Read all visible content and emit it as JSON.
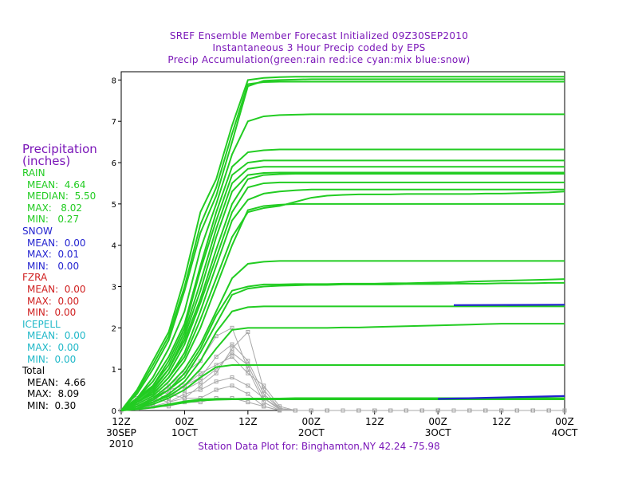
{
  "titles": [
    "SREF Ensemble Member Forecast Initialized 09Z30SEP2010",
    "Instantaneous 3 Hour Precip coded by EPS",
    "Precip Accumulation(green:rain red:ice cyan:mix blue:snow)"
  ],
  "legend": {
    "header1": "Precipitation",
    "header2": "(inches)",
    "rain": {
      "label": "RAIN",
      "mean": "MEAN:  4.64",
      "median": "MEDIAN:  5.50",
      "max": "MAX:   8.02",
      "min": "MIN:   0.27"
    },
    "snow": {
      "label": "SNOW",
      "mean": "MEAN:  0.00",
      "max": "MAX:  0.01",
      "min": "MIN:   0.00"
    },
    "fzra": {
      "label": "FZRA",
      "mean": "MEAN:  0.00",
      "max": "MAX:  0.00",
      "min": "MIN:  0.00"
    },
    "icepell": {
      "label": "ICEPELL",
      "mean": "MEAN:  0.00",
      "max": "MAX:  0.00",
      "min": "MIN:  0.00"
    },
    "total": {
      "label": "Total",
      "mean": "MEAN:  4.66",
      "max": "MAX:  8.09",
      "min": "MIN:  0.30"
    }
  },
  "footer": "Station Data Plot for: Binghamton,NY 42.24 -75.98",
  "colors": {
    "title": "#7a16b8",
    "rain": "#22cc22",
    "snow": "#2323d0",
    "fzra": "#d02020",
    "icepell": "#20b8c8",
    "instant": "#a8a8a8"
  },
  "chart_data": {
    "type": "line",
    "xlabel": "",
    "ylabel": "",
    "xlim": [
      0,
      48
    ],
    "ylim": [
      0,
      8.2
    ],
    "yticks": [
      "0",
      "1",
      "2",
      "3",
      "4",
      "5",
      "6",
      "7",
      "8"
    ],
    "xticks": [
      {
        "x": 0,
        "line1": "12Z",
        "line2": "30SEP",
        "line3": "2010"
      },
      {
        "x": 4,
        "line1": "00Z",
        "line2": "1OCT",
        "line3": ""
      },
      {
        "x": 8,
        "line1": "12Z",
        "line2": "",
        "line3": ""
      },
      {
        "x": 12,
        "line1": "00Z",
        "line2": "2OCT",
        "line3": ""
      },
      {
        "x": 16,
        "line1": "12Z",
        "line2": "",
        "line3": ""
      },
      {
        "x": 20,
        "line1": "00Z",
        "line2": "3OCT",
        "line3": ""
      },
      {
        "x": 24,
        "line1": "12Z",
        "line2": "",
        "line3": ""
      },
      {
        "x": 28,
        "line1": "00Z",
        "line2": "4OCT",
        "line3": ""
      }
    ],
    "x": [
      0,
      1,
      2,
      3,
      4,
      5,
      6,
      7,
      8,
      9,
      10,
      11,
      12,
      13,
      14,
      15,
      16,
      17,
      18,
      19,
      20,
      21,
      22,
      23,
      24,
      25,
      26,
      27,
      28
    ],
    "series_accumulation": [
      {
        "values": [
          0,
          0.5,
          1.2,
          1.9,
          3.2,
          4.8,
          5.6,
          6.9,
          8.0,
          8.05,
          8.07,
          8.08,
          8.08,
          8.08,
          8.08,
          8.08,
          8.08,
          8.08,
          8.08,
          8.08,
          8.08,
          8.08,
          8.08,
          8.08,
          8.08,
          8.08,
          8.08,
          8.08,
          8.08
        ]
      },
      {
        "values": [
          0,
          0.4,
          1.0,
          1.7,
          2.9,
          4.3,
          5.2,
          6.5,
          7.85,
          7.98,
          8.0,
          8.01,
          8.02,
          8.02,
          8.02,
          8.02,
          8.02,
          8.02,
          8.02,
          8.02,
          8.02,
          8.02,
          8.02,
          8.02,
          8.02,
          8.02,
          8.02,
          8.02,
          8.02
        ]
      },
      {
        "values": [
          0,
          0.45,
          1.1,
          1.8,
          3.0,
          4.5,
          5.4,
          6.7,
          7.9,
          7.95,
          7.96,
          7.96,
          7.96,
          7.96,
          7.96,
          7.96,
          7.96,
          7.96,
          7.96,
          7.96,
          7.96,
          7.96,
          7.96,
          7.96,
          7.96,
          7.96,
          7.96,
          7.96,
          7.96
        ]
      },
      {
        "values": [
          0,
          0.3,
          0.8,
          1.5,
          2.4,
          3.9,
          5.0,
          6.2,
          7.0,
          7.12,
          7.15,
          7.16,
          7.17,
          7.17,
          7.17,
          7.17,
          7.17,
          7.17,
          7.17,
          7.17,
          7.17,
          7.17,
          7.17,
          7.17,
          7.17,
          7.17,
          7.17,
          7.17,
          7.17
        ]
      },
      {
        "values": [
          0,
          0.3,
          0.7,
          1.3,
          2.1,
          3.5,
          4.8,
          5.9,
          6.25,
          6.3,
          6.32,
          6.32,
          6.32,
          6.32,
          6.32,
          6.32,
          6.32,
          6.32,
          6.32,
          6.32,
          6.32,
          6.32,
          6.32,
          6.32,
          6.32,
          6.32,
          6.32,
          6.32,
          6.32
        ]
      },
      {
        "values": [
          0,
          0.3,
          0.6,
          1.2,
          2.0,
          3.4,
          4.6,
          5.7,
          6.0,
          6.05,
          6.05,
          6.05,
          6.05,
          6.05,
          6.05,
          6.05,
          6.05,
          6.05,
          6.05,
          6.05,
          6.05,
          6.05,
          6.05,
          6.05,
          6.05,
          6.05,
          6.05,
          6.05,
          6.05
        ]
      },
      {
        "values": [
          0,
          0.25,
          0.6,
          1.1,
          1.9,
          3.1,
          4.4,
          5.5,
          5.85,
          5.9,
          5.9,
          5.9,
          5.9,
          5.9,
          5.9,
          5.9,
          5.9,
          5.9,
          5.9,
          5.9,
          5.9,
          5.9,
          5.9,
          5.9,
          5.9,
          5.9,
          5.9,
          5.9,
          5.9
        ]
      },
      {
        "values": [
          0,
          0.25,
          0.55,
          1.0,
          1.8,
          2.9,
          4.2,
          5.3,
          5.7,
          5.75,
          5.76,
          5.76,
          5.76,
          5.76,
          5.76,
          5.76,
          5.76,
          5.76,
          5.76,
          5.76,
          5.76,
          5.76,
          5.76,
          5.76,
          5.76,
          5.76,
          5.76,
          5.76,
          5.76
        ]
      },
      {
        "values": [
          0,
          0.2,
          0.5,
          1.0,
          1.7,
          2.7,
          3.9,
          5.0,
          5.6,
          5.7,
          5.72,
          5.73,
          5.73,
          5.73,
          5.73,
          5.73,
          5.73,
          5.73,
          5.73,
          5.73,
          5.73,
          5.73,
          5.73,
          5.73,
          5.73,
          5.73,
          5.73,
          5.73,
          5.73
        ]
      },
      {
        "values": [
          0,
          0.2,
          0.45,
          0.9,
          1.6,
          2.6,
          3.7,
          4.8,
          5.4,
          5.5,
          5.52,
          5.52,
          5.52,
          5.52,
          5.52,
          5.52,
          5.52,
          5.52,
          5.52,
          5.52,
          5.52,
          5.52,
          5.52,
          5.52,
          5.52,
          5.52,
          5.52,
          5.52,
          5.52
        ]
      },
      {
        "values": [
          0,
          0.2,
          0.4,
          0.8,
          1.4,
          2.4,
          3.5,
          4.6,
          5.1,
          5.25,
          5.3,
          5.33,
          5.35,
          5.35,
          5.35,
          5.35,
          5.35,
          5.35,
          5.35,
          5.35,
          5.35,
          5.35,
          5.35,
          5.35,
          5.35,
          5.35,
          5.35,
          5.35,
          5.35
        ]
      },
      {
        "values": [
          0,
          0.2,
          0.4,
          0.8,
          1.3,
          2.2,
          3.2,
          4.2,
          4.8,
          4.9,
          4.95,
          5.05,
          5.15,
          5.2,
          5.22,
          5.23,
          5.23,
          5.23,
          5.24,
          5.24,
          5.24,
          5.24,
          5.24,
          5.25,
          5.25,
          5.26,
          5.27,
          5.28,
          5.3
        ]
      },
      {
        "values": [
          0,
          0.15,
          0.35,
          0.7,
          1.2,
          2.0,
          3.0,
          4.0,
          4.85,
          4.95,
          4.98,
          5.0,
          5.0,
          5.0,
          5.0,
          5.0,
          5.0,
          5.0,
          5.0,
          5.0,
          5.0,
          5.0,
          5.0,
          5.0,
          5.0,
          5.0,
          5.0,
          5.0,
          5.0
        ]
      },
      {
        "values": [
          0,
          0.1,
          0.3,
          0.6,
          1.0,
          1.6,
          2.4,
          3.2,
          3.55,
          3.6,
          3.62,
          3.62,
          3.62,
          3.62,
          3.62,
          3.62,
          3.62,
          3.62,
          3.62,
          3.62,
          3.62,
          3.62,
          3.62,
          3.62,
          3.62,
          3.62,
          3.62,
          3.62,
          3.62
        ]
      },
      {
        "values": [
          0,
          0.1,
          0.3,
          0.5,
          0.9,
          1.5,
          2.3,
          2.9,
          3.0,
          3.05,
          3.05,
          3.06,
          3.06,
          3.06,
          3.07,
          3.07,
          3.07,
          3.08,
          3.08,
          3.09,
          3.1,
          3.1,
          3.12,
          3.13,
          3.14,
          3.15,
          3.16,
          3.17,
          3.18
        ]
      },
      {
        "values": [
          0,
          0.1,
          0.25,
          0.5,
          0.8,
          1.4,
          2.1,
          2.8,
          2.95,
          3.0,
          3.02,
          3.03,
          3.04,
          3.04,
          3.05,
          3.05,
          3.05,
          3.05,
          3.06,
          3.06,
          3.06,
          3.07,
          3.07,
          3.07,
          3.08,
          3.08,
          3.08,
          3.09,
          3.09
        ]
      },
      {
        "values": [
          0,
          0.1,
          0.2,
          0.4,
          0.7,
          1.2,
          1.9,
          2.4,
          2.5,
          2.52,
          2.52,
          2.52,
          2.52,
          2.52,
          2.52,
          2.52,
          2.52,
          2.52,
          2.52,
          2.52,
          2.52,
          2.52,
          2.52,
          2.52,
          2.52,
          2.52,
          2.52,
          2.52,
          2.52
        ]
      },
      {
        "values": [
          0,
          0.05,
          0.2,
          0.35,
          0.6,
          1.0,
          1.5,
          1.95,
          2.0,
          2.0,
          2.0,
          2.0,
          2.0,
          2.0,
          2.01,
          2.01,
          2.02,
          2.03,
          2.04,
          2.05,
          2.06,
          2.07,
          2.08,
          2.09,
          2.1,
          2.1,
          2.1,
          2.1,
          2.1
        ]
      },
      {
        "values": [
          0,
          0.05,
          0.15,
          0.3,
          0.5,
          0.8,
          1.05,
          1.1,
          1.1,
          1.1,
          1.1,
          1.1,
          1.1,
          1.1,
          1.1,
          1.1,
          1.1,
          1.1,
          1.1,
          1.1,
          1.1,
          1.1,
          1.1,
          1.1,
          1.1,
          1.1,
          1.1,
          1.1,
          1.1
        ]
      },
      {
        "values": [
          0,
          0.03,
          0.08,
          0.15,
          0.22,
          0.27,
          0.28,
          0.28,
          0.29,
          0.29,
          0.29,
          0.3,
          0.3,
          0.3,
          0.3,
          0.3,
          0.3,
          0.3,
          0.3,
          0.3,
          0.3,
          0.3,
          0.3,
          0.3,
          0.3,
          0.3,
          0.3,
          0.3,
          0.3
        ]
      },
      {
        "values": [
          0,
          0.03,
          0.07,
          0.13,
          0.19,
          0.24,
          0.26,
          0.27,
          0.27,
          0.27,
          0.27,
          0.27,
          0.27,
          0.27,
          0.27,
          0.27,
          0.27,
          0.27,
          0.27,
          0.27,
          0.27,
          0.27,
          0.27,
          0.27,
          0.27,
          0.27,
          0.27,
          0.27,
          0.27
        ]
      }
    ],
    "snow_segments": [
      {
        "x": [
          21,
          28
        ],
        "y": [
          2.55,
          2.56
        ]
      },
      {
        "x": [
          20,
          28
        ],
        "y": [
          0.28,
          0.35
        ]
      }
    ],
    "series_instantaneous": [
      {
        "values": [
          0,
          0.1,
          0.3,
          0.5,
          0.6,
          0.8,
          1.3,
          1.6,
          1.2,
          0.4,
          0.05,
          0,
          0,
          0,
          0,
          0,
          0,
          0,
          0,
          0,
          0,
          0,
          0,
          0,
          0,
          0,
          0,
          0,
          0
        ]
      },
      {
        "values": [
          0,
          0.2,
          0.4,
          0.3,
          0.5,
          0.7,
          1.0,
          1.4,
          1.1,
          0.3,
          0.02,
          0,
          0,
          0,
          0,
          0,
          0,
          0,
          0,
          0,
          0,
          0,
          0,
          0,
          0,
          0,
          0,
          0,
          0
        ]
      },
      {
        "values": [
          0,
          0.1,
          0.2,
          0.6,
          0.9,
          1.2,
          1.8,
          2.0,
          1.0,
          0.2,
          0,
          0,
          0,
          0,
          0,
          0,
          0,
          0,
          0,
          0,
          0,
          0,
          0,
          0,
          0,
          0,
          0,
          0,
          0
        ]
      },
      {
        "values": [
          0,
          0.3,
          0.5,
          0.4,
          0.3,
          0.6,
          0.9,
          1.5,
          1.9,
          0.5,
          0.05,
          0,
          0,
          0,
          0,
          0,
          0,
          0,
          0,
          0,
          0,
          0,
          0,
          0,
          0,
          0,
          0,
          0,
          0
        ]
      },
      {
        "values": [
          0,
          0.05,
          0.15,
          0.3,
          0.6,
          0.9,
          1.1,
          1.3,
          0.9,
          0.6,
          0.1,
          0,
          0,
          0,
          0,
          0,
          0,
          0,
          0,
          0,
          0,
          0,
          0,
          0,
          0,
          0,
          0,
          0,
          0
        ]
      },
      {
        "values": [
          0,
          0.2,
          0.3,
          0.2,
          0.4,
          0.5,
          0.7,
          0.8,
          0.6,
          0.3,
          0.05,
          0,
          0,
          0,
          0,
          0,
          0,
          0,
          0,
          0,
          0,
          0,
          0,
          0,
          0,
          0,
          0,
          0,
          0
        ]
      },
      {
        "values": [
          0,
          0.1,
          0.1,
          0.2,
          0.3,
          0.3,
          0.5,
          0.6,
          0.4,
          0.1,
          0,
          0,
          0,
          0,
          0,
          0,
          0,
          0,
          0,
          0,
          0,
          0,
          0,
          0,
          0,
          0,
          0,
          0,
          0
        ]
      },
      {
        "values": [
          0,
          0.05,
          0.1,
          0.1,
          0.2,
          0.2,
          0.3,
          0.3,
          0.2,
          0.1,
          0,
          0,
          0,
          0,
          0,
          0,
          0,
          0,
          0,
          0,
          0,
          0,
          0,
          0,
          0,
          0,
          0,
          0,
          0
        ]
      }
    ]
  }
}
